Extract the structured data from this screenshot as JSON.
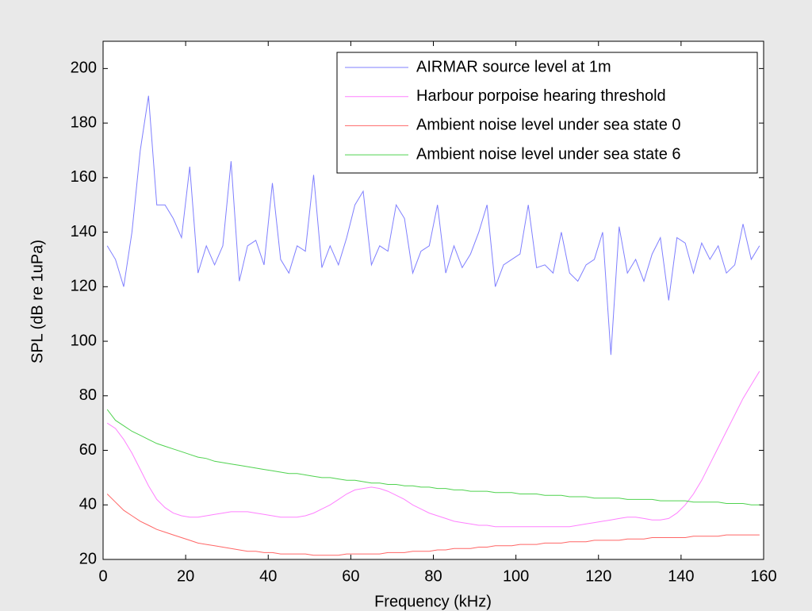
{
  "chart_data": {
    "type": "line",
    "xlabel": "Frequency (kHz)",
    "ylabel": "SPL (dB re 1uPa)",
    "xlim": [
      0,
      160
    ],
    "ylim": [
      20,
      210
    ],
    "xticks": [
      0,
      20,
      40,
      60,
      80,
      100,
      120,
      140,
      160
    ],
    "yticks": [
      20,
      40,
      60,
      80,
      100,
      120,
      140,
      160,
      180,
      200
    ],
    "legend": "northeast",
    "x": [
      1,
      3,
      5,
      7,
      9,
      11,
      13,
      15,
      17,
      19,
      21,
      23,
      25,
      27,
      29,
      31,
      33,
      35,
      37,
      39,
      41,
      43,
      45,
      47,
      49,
      51,
      53,
      55,
      57,
      59,
      61,
      63,
      65,
      67,
      69,
      71,
      73,
      75,
      77,
      79,
      81,
      83,
      85,
      87,
      89,
      91,
      93,
      95,
      97,
      99,
      101,
      103,
      105,
      107,
      109,
      111,
      113,
      115,
      117,
      119,
      121,
      123,
      125,
      127,
      129,
      131,
      133,
      135,
      137,
      139,
      141,
      143,
      145,
      147,
      149,
      151,
      153,
      155,
      157,
      159
    ],
    "series": [
      {
        "name": "AIRMAR source level at 1m",
        "color": "#7f7fff",
        "values": [
          135,
          130,
          120,
          140,
          170,
          190,
          150,
          150,
          145,
          138,
          164,
          125,
          135,
          128,
          135,
          166,
          122,
          135,
          137,
          128,
          158,
          130,
          125,
          135,
          133,
          161,
          127,
          135,
          128,
          138,
          150,
          155,
          128,
          135,
          133,
          150,
          145,
          125,
          133,
          135,
          150,
          125,
          135,
          127,
          132,
          140,
          150,
          120,
          128,
          130,
          132,
          150,
          127,
          128,
          125,
          140,
          125,
          122,
          128,
          130,
          140,
          95,
          142,
          125,
          130,
          122,
          132,
          138,
          115,
          138,
          136,
          125,
          136,
          130,
          135,
          125,
          128,
          143,
          130,
          135
        ]
      },
      {
        "name": "Harbour porpoise hearing threshold",
        "color": "#ff80ff",
        "values": [
          70,
          68,
          64,
          59,
          53,
          47,
          42,
          39,
          37,
          36,
          35.5,
          35.5,
          36,
          36.5,
          37,
          37.5,
          37.5,
          37.5,
          37,
          36.5,
          36,
          35.5,
          35.5,
          35.5,
          36,
          37,
          38.5,
          40,
          42,
          44,
          45.5,
          46,
          46.5,
          46,
          45,
          43.5,
          42,
          40,
          38.5,
          37,
          36,
          35,
          34,
          33.5,
          33,
          32.5,
          32.5,
          32,
          32,
          32,
          32,
          32,
          32,
          32,
          32,
          32,
          32,
          32.5,
          33,
          33.5,
          34,
          34.5,
          35,
          35.5,
          35.5,
          35,
          34.5,
          34.5,
          35,
          37,
          40,
          44,
          49,
          55,
          61,
          67,
          73,
          79,
          84,
          89
        ]
      },
      {
        "name": "Ambient noise level under sea state 0",
        "color": "#ff6666",
        "values": [
          44,
          41,
          38,
          36,
          34,
          32.5,
          31,
          30,
          29,
          28,
          27,
          26,
          25.5,
          25,
          24.5,
          24,
          23.5,
          23,
          23,
          22.5,
          22.5,
          22,
          22,
          22,
          22,
          21.5,
          21.5,
          21.5,
          21.5,
          22,
          22,
          22,
          22,
          22,
          22.5,
          22.5,
          22.5,
          23,
          23,
          23,
          23.5,
          23.5,
          24,
          24,
          24,
          24.5,
          24.5,
          25,
          25,
          25,
          25.5,
          25.5,
          25.5,
          26,
          26,
          26,
          26.5,
          26.5,
          26.5,
          27,
          27,
          27,
          27,
          27.5,
          27.5,
          27.5,
          28,
          28,
          28,
          28,
          28,
          28.5,
          28.5,
          28.5,
          28.5,
          29,
          29,
          29,
          29,
          29
        ]
      },
      {
        "name": "Ambient noise level under sea state 6",
        "color": "#4fd24f",
        "values": [
          75,
          71,
          69,
          67,
          65.5,
          64,
          62.5,
          61.5,
          60.5,
          59.5,
          58.5,
          57.5,
          57,
          56,
          55.5,
          55,
          54.5,
          54,
          53.5,
          53,
          52.5,
          52,
          51.5,
          51.5,
          51,
          50.5,
          50,
          50,
          49.5,
          49,
          49,
          48.5,
          48,
          48,
          47.5,
          47.5,
          47,
          47,
          46.5,
          46.5,
          46,
          46,
          45.5,
          45.5,
          45,
          45,
          45,
          44.5,
          44.5,
          44.5,
          44,
          44,
          44,
          43.5,
          43.5,
          43.5,
          43,
          43,
          43,
          42.5,
          42.5,
          42.5,
          42.5,
          42,
          42,
          42,
          42,
          41.5,
          41.5,
          41.5,
          41.5,
          41,
          41,
          41,
          41,
          40.5,
          40.5,
          40.5,
          40,
          40
        ]
      }
    ]
  }
}
